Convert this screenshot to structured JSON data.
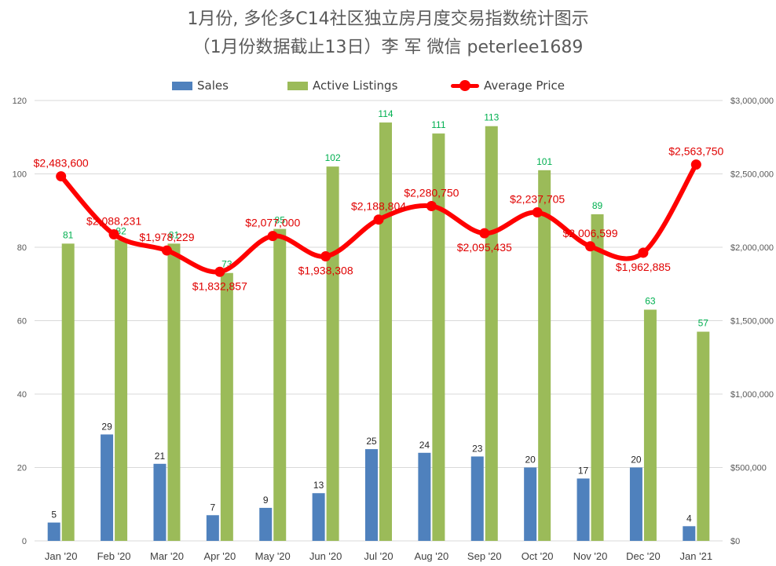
{
  "chart_data": {
    "type": "bar",
    "title": "1月份, 多伦多C14社区独立房月度交易指数统计图示",
    "subtitle": "（1月份数据截止13日）李 军  微信  peterlee1689",
    "categories": [
      "Jan '20",
      "Feb '20",
      "Mar '20",
      "Apr '20",
      "May '20",
      "Jun '20",
      "Jul '20",
      "Aug '20",
      "Sep '20",
      "Oct '20",
      "Nov '20",
      "Dec '20",
      "Jan '21"
    ],
    "series": [
      {
        "name": "Sales",
        "type": "bar",
        "axis": "left",
        "color": "#4f81bd",
        "values": [
          5,
          29,
          21,
          7,
          9,
          13,
          25,
          24,
          23,
          20,
          17,
          20,
          4
        ],
        "labels": [
          "5",
          "29",
          "21",
          "7",
          "9",
          "13",
          "25",
          "24",
          "23",
          "20",
          "17",
          "20",
          "4"
        ]
      },
      {
        "name": "Active Listings",
        "type": "bar",
        "axis": "left",
        "color": "#9bbb59",
        "values": [
          81,
          82,
          81,
          73,
          85,
          102,
          114,
          111,
          113,
          101,
          89,
          63,
          57
        ],
        "labels": [
          "81",
          "82",
          "81",
          "73",
          "85",
          "102",
          "114",
          "111",
          "113",
          "101",
          "89",
          "63",
          "57"
        ]
      },
      {
        "name": "Average Price",
        "type": "line",
        "axis": "right",
        "color": "#ff0000",
        "values": [
          2483600,
          2088231,
          1978229,
          1832857,
          2077000,
          1938308,
          2188804,
          2280750,
          2095435,
          2237705,
          2006599,
          1962885,
          2563750
        ],
        "labels": [
          "$2,483,600",
          "$2,088,231",
          "$1,978,229",
          "$1,832,857",
          "$2,077,000",
          "$1,938,308",
          "$2,188,804",
          "$2,280,750",
          "$2,095,435",
          "$2,237,705",
          "$2,006,599",
          "$1,962,885",
          "$2,563,750"
        ]
      }
    ],
    "y_left": {
      "ylim": [
        0,
        120
      ],
      "ticks": [
        "0",
        "20",
        "40",
        "60",
        "80",
        "100",
        "120"
      ]
    },
    "y_right": {
      "ylim": [
        0,
        3000000
      ],
      "ticks": [
        "$0",
        "$500,000",
        "$1,000,000",
        "$1,500,000",
        "$2,000,000",
        "$2,500,000",
        "$3,000,000"
      ]
    },
    "grid": true,
    "legend_position": "top",
    "colors": {
      "sales": "#4f81bd",
      "listings": "#9bbb59",
      "price": "#ff0000",
      "listings_label": "#00b050",
      "grid": "#d9d9d9",
      "axis_text": "#595959"
    }
  }
}
